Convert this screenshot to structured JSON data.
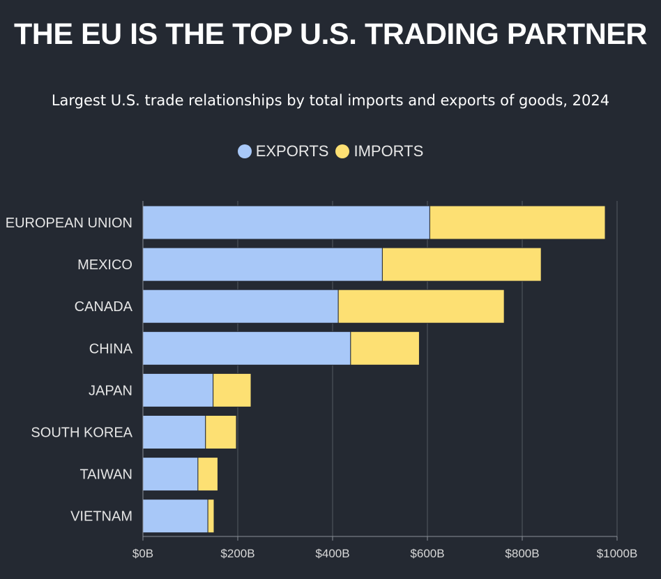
{
  "chart_data": {
    "type": "bar",
    "orientation": "horizontal",
    "stacked": true,
    "title": "THE EU IS THE TOP U.S. TRADING PARTNER",
    "subtitle": "Largest U.S. trade relationships by total imports and exports of goods, 2024",
    "categories": [
      "EUROPEAN UNION",
      "MEXICO",
      "CANADA",
      "CHINA",
      "JAPAN",
      "SOUTH KOREA",
      "TAIWAN",
      "VIETNAM"
    ],
    "series": [
      {
        "name": "EXPORTS",
        "color": "#a8c8f8",
        "values": [
          605,
          505,
          412,
          438,
          148,
          132,
          116,
          137
        ]
      },
      {
        "name": "IMPORTS",
        "color": "#fde073",
        "values": [
          370,
          335,
          350,
          145,
          80,
          65,
          42,
          13
        ]
      }
    ],
    "xlim": [
      0,
      1000
    ],
    "xticks": [
      0,
      200,
      400,
      600,
      800,
      1000
    ],
    "xtick_labels": [
      "$0B",
      "$200B",
      "$400B",
      "$600B",
      "$800B",
      "$1000B"
    ],
    "legend_position": "top-center",
    "grid": "vertical",
    "colors": {
      "background": "#242932",
      "grid": "#555a63",
      "axis": "#8a8f98"
    }
  }
}
